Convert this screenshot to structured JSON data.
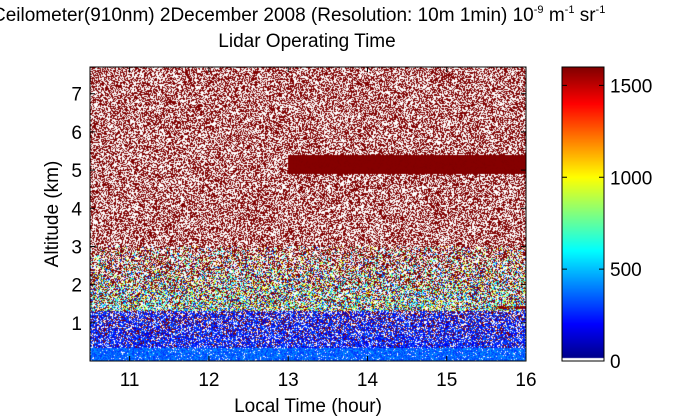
{
  "chart_data": {
    "type": "heatmap",
    "title_line1_text": "Ceilometer(910nm) 2December 2008 (Resolution: 10m 1min) 10",
    "title_line1_exp1": "-9",
    "title_line1_unit1": " m",
    "title_line1_exp2": "-1",
    "title_line1_unit2": " sr",
    "title_line1_exp3": "-1",
    "title_line2": "Lidar Operating Time",
    "xlabel": "Local Time (hour)",
    "ylabel": "Altitude (km)",
    "xlim": [
      10.5,
      16.0
    ],
    "ylim": [
      0.0,
      7.7
    ],
    "xticks": [
      11,
      12,
      13,
      14,
      15,
      16
    ],
    "yticks": [
      1,
      2,
      3,
      4,
      5,
      6,
      7
    ],
    "colorbar": {
      "colormap": "jet",
      "range": [
        0,
        1600
      ],
      "ticks": [
        0,
        500,
        1000,
        1500
      ]
    },
    "resolution": {
      "vertical_m": 10,
      "time_min": 1
    },
    "features": {
      "near_surface_band_top_km": 0.35,
      "low_signal_layer_top_km": 1.3,
      "mixing_layer_top_km": 2.4,
      "saturated_layer_km": [
        4.9,
        5.4
      ],
      "saturated_layer_time": [
        13.0,
        16.0
      ],
      "thin_layer_km": 1.4,
      "thin_layer_time": [
        15.6,
        16.0
      ],
      "background_noise_above_km": 3.0
    }
  }
}
